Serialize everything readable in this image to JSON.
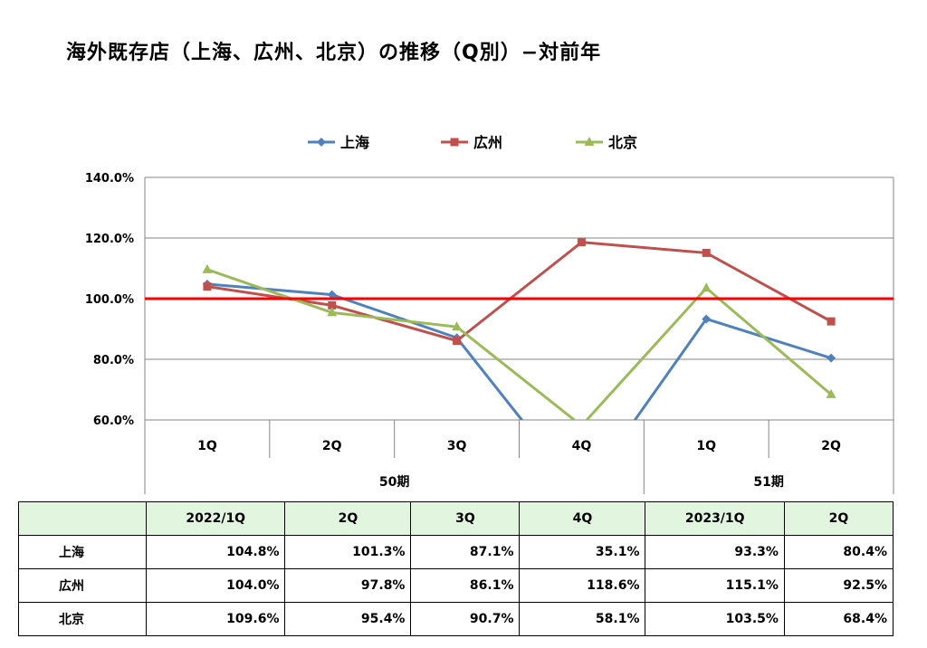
{
  "title": "海外既存店（上海、広州、北京）の推移（Q別）−対前年",
  "chart_data": {
    "type": "line",
    "categories": [
      "1Q",
      "2Q",
      "3Q",
      "4Q",
      "1Q",
      "2Q"
    ],
    "groups": [
      {
        "label": "50期",
        "span": 4
      },
      {
        "label": "51期",
        "span": 2
      }
    ],
    "ylim": [
      60,
      140
    ],
    "yticks": [
      60,
      80,
      100,
      120,
      140
    ],
    "ytick_labels": [
      "60.0%",
      "80.0%",
      "100.0%",
      "120.0%",
      "140.0%"
    ],
    "reference_line": {
      "value": 100,
      "color": "#ff0000"
    },
    "grid": true,
    "legend_position": "top",
    "series": [
      {
        "name": "上海",
        "color": "#4f81bd",
        "marker": "diamond",
        "values": [
          104.8,
          101.3,
          87.1,
          35.1,
          93.3,
          80.4
        ]
      },
      {
        "name": "広州",
        "color": "#c0504d",
        "marker": "square",
        "values": [
          104.0,
          97.8,
          86.1,
          118.6,
          115.1,
          92.5
        ]
      },
      {
        "name": "北京",
        "color": "#9bbb59",
        "marker": "triangle",
        "values": [
          109.6,
          95.4,
          90.7,
          58.1,
          103.5,
          68.4
        ]
      }
    ]
  },
  "table": {
    "headers": [
      "",
      "2022/1Q",
      "2Q",
      "3Q",
      "4Q",
      "2023/1Q",
      "2Q"
    ],
    "rows": [
      {
        "label": "上海",
        "values": [
          "104.8%",
          "101.3%",
          "87.1%",
          "35.1%",
          "93.3%",
          "80.4%"
        ]
      },
      {
        "label": "広州",
        "values": [
          "104.0%",
          "97.8%",
          "86.1%",
          "118.6%",
          "115.1%",
          "92.5%"
        ]
      },
      {
        "label": "北京",
        "values": [
          "109.6%",
          "95.4%",
          "90.7%",
          "58.1%",
          "103.5%",
          "68.4%"
        ]
      }
    ]
  }
}
